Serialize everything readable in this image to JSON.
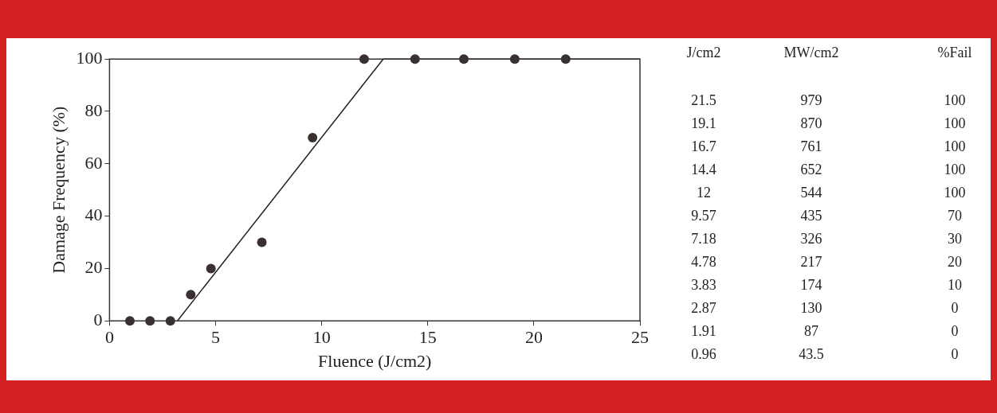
{
  "chart_data": [
    {
      "type": "scatter",
      "xlabel": "Fluence (J/cm2)",
      "ylabel": "Damage Frequency (%)",
      "xlim": [
        0,
        25
      ],
      "ylim": [
        0,
        100
      ],
      "xticks": [
        0,
        5,
        10,
        15,
        20,
        25
      ],
      "yticks": [
        0,
        20,
        40,
        60,
        80,
        100
      ],
      "grid": false,
      "legend": false,
      "marker": "circle",
      "series": [
        {
          "x": [
            0.96,
            1.91,
            2.87,
            3.83,
            4.78,
            7.18,
            9.57,
            12,
            14.4,
            16.7,
            19.1,
            21.5
          ],
          "values": [
            0,
            0,
            0,
            10,
            20,
            30,
            70,
            100,
            100,
            100,
            100,
            100
          ],
          "color": "#3a3030"
        },
        {
          "type": "line",
          "marker": "none",
          "x": [
            3.2,
            12.9,
            25
          ],
          "values": [
            0,
            100,
            100
          ],
          "color": "#222222"
        }
      ]
    },
    {
      "type": "other",
      "categories": [
        "J/cm2",
        "MW/cm2",
        "%Fail"
      ],
      "annotations": [
        "21.5",
        "979",
        "100",
        "19.1",
        "870",
        "100",
        "16.7",
        "761",
        "100",
        "14.4",
        "652",
        "100",
        "12",
        "544",
        "100",
        "9.57",
        "435",
        "70",
        "7.18",
        "326",
        "30",
        "4.78",
        "217",
        "20",
        "3.83",
        "174",
        "10",
        "2.87",
        "130",
        "0",
        "1.91",
        "87",
        "0",
        "0.96",
        "43.5",
        "0"
      ]
    }
  ]
}
